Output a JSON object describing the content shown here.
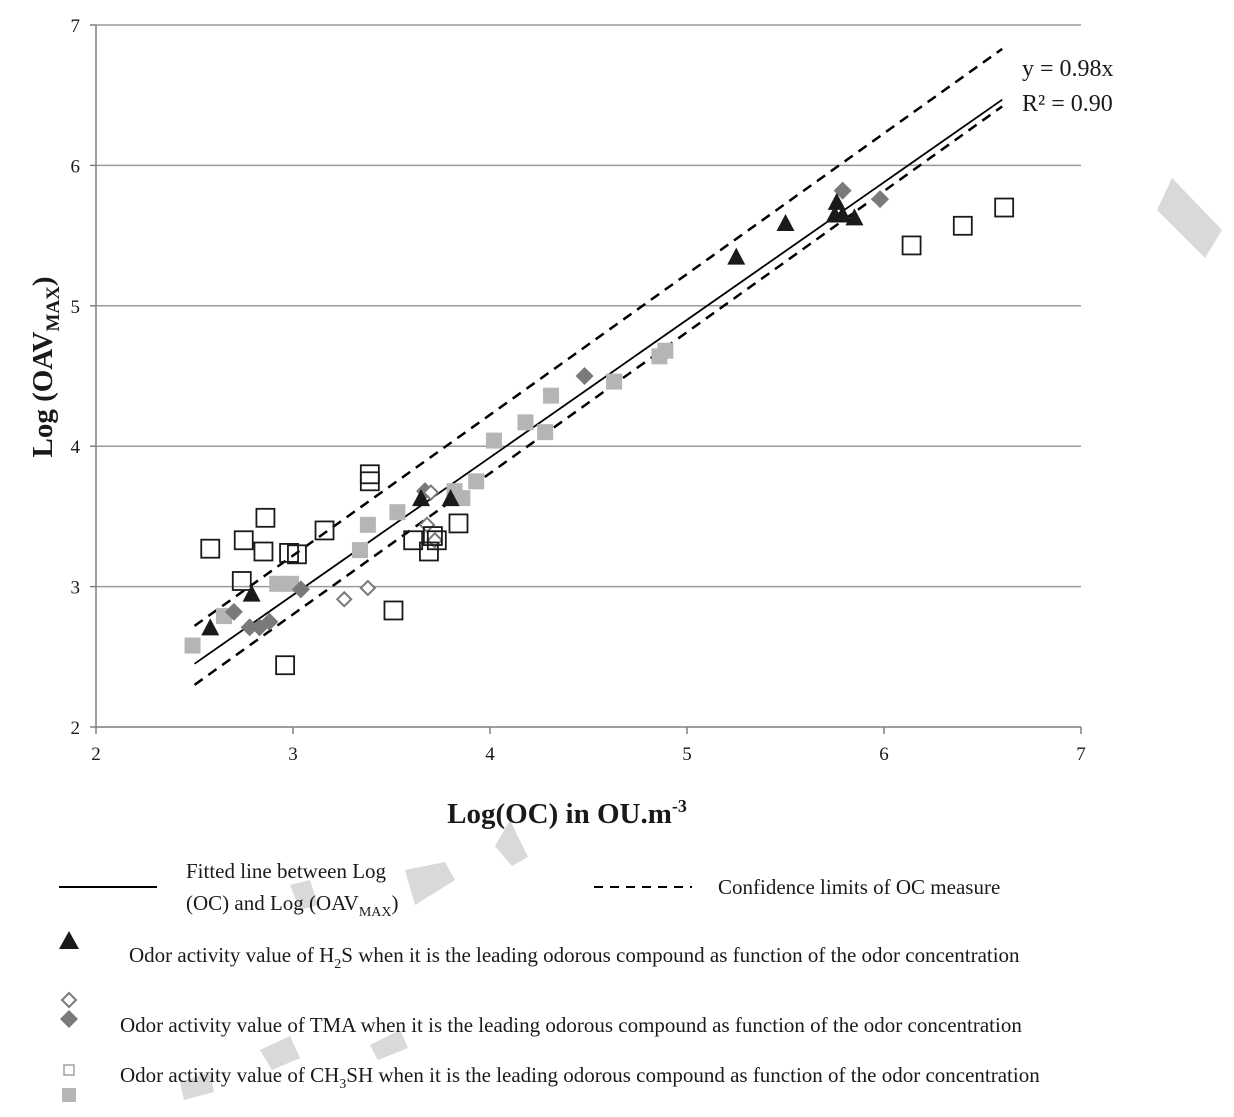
{
  "colors": {
    "gridline": "#9a9a9a",
    "axis": "#7f7f7f",
    "fit_line": "#000000",
    "confidence_line": "#000000",
    "h2s": "#1a1a1a",
    "tma_open": "#7a7a7a",
    "tma_filled": "#7a7a7a",
    "ch3sh_open": "#1a1a1a",
    "ch3sh_filled": "#b5b5b5",
    "watermark": "#d9d9d9"
  },
  "chart_data": {
    "type": "scatter",
    "title": "",
    "xlabel": {
      "main": "Log(OC) in OU.m",
      "sup": "-3"
    },
    "ylabel": {
      "main": "Log (OAV",
      "sub": "MAX",
      "end": ")"
    },
    "xlim": [
      2,
      7
    ],
    "ylim": [
      2,
      7
    ],
    "xticks": [
      2,
      3,
      4,
      5,
      6,
      7
    ],
    "yticks": [
      2,
      3,
      4,
      5,
      6,
      7
    ],
    "grid": "horizontal",
    "equation": "y = 0.98x",
    "r_squared": "R² = 0.90",
    "fit_line": {
      "slope": 0.98,
      "x_range": [
        2.5,
        6.6
      ]
    },
    "confidence_upper": [
      [
        2.5,
        2.72
      ],
      [
        6.6,
        6.83
      ]
    ],
    "confidence_lower": [
      [
        2.5,
        2.3
      ],
      [
        6.6,
        6.42
      ]
    ],
    "series": [
      {
        "key": "h2s",
        "marker": "triangle",
        "points": [
          [
            2.58,
            2.71
          ],
          [
            2.79,
            2.95
          ],
          [
            3.65,
            3.63
          ],
          [
            3.8,
            3.63
          ],
          [
            5.25,
            5.35
          ],
          [
            5.5,
            5.59
          ],
          [
            5.75,
            5.65
          ],
          [
            5.76,
            5.74
          ],
          [
            5.79,
            5.65
          ],
          [
            5.85,
            5.63
          ]
        ]
      },
      {
        "key": "tma_open",
        "marker": "diamond-open",
        "points": [
          [
            3.26,
            2.91
          ],
          [
            3.38,
            2.99
          ],
          [
            3.68,
            3.44
          ],
          [
            3.7,
            3.67
          ],
          [
            3.72,
            3.33
          ]
        ]
      },
      {
        "key": "tma_filled",
        "marker": "diamond-filled",
        "points": [
          [
            2.7,
            2.82
          ],
          [
            2.78,
            2.71
          ],
          [
            2.83,
            2.71
          ],
          [
            2.88,
            2.75
          ],
          [
            3.04,
            2.98
          ],
          [
            3.67,
            3.68
          ],
          [
            4.48,
            4.5
          ],
          [
            5.79,
            5.82
          ],
          [
            5.98,
            5.76
          ]
        ]
      },
      {
        "key": "ch3sh_filled",
        "marker": "square-filled",
        "points": [
          [
            2.49,
            2.58
          ],
          [
            2.65,
            2.79
          ],
          [
            2.92,
            3.02
          ],
          [
            2.99,
            3.02
          ],
          [
            3.34,
            3.26
          ],
          [
            3.38,
            3.44
          ],
          [
            3.53,
            3.53
          ],
          [
            3.82,
            3.68
          ],
          [
            3.86,
            3.63
          ],
          [
            3.93,
            3.75
          ],
          [
            4.02,
            4.04
          ],
          [
            4.18,
            4.17
          ],
          [
            4.28,
            4.1
          ],
          [
            4.31,
            4.36
          ],
          [
            4.63,
            4.46
          ],
          [
            4.86,
            4.64
          ],
          [
            4.89,
            4.68
          ]
        ]
      },
      {
        "key": "ch3sh_open",
        "marker": "square-open",
        "points": [
          [
            2.58,
            3.27
          ],
          [
            2.74,
            3.04
          ],
          [
            2.75,
            3.33
          ],
          [
            2.85,
            3.25
          ],
          [
            2.86,
            3.49
          ],
          [
            2.96,
            2.44
          ],
          [
            2.98,
            3.24
          ],
          [
            3.02,
            3.23
          ],
          [
            3.16,
            3.4
          ],
          [
            3.39,
            3.8
          ],
          [
            3.39,
            3.75
          ],
          [
            3.51,
            2.83
          ],
          [
            3.61,
            3.33
          ],
          [
            3.69,
            3.25
          ],
          [
            3.71,
            3.36
          ],
          [
            3.73,
            3.33
          ],
          [
            3.84,
            3.45
          ],
          [
            6.14,
            5.43
          ],
          [
            6.4,
            5.57
          ],
          [
            6.61,
            5.7
          ]
        ]
      }
    ]
  },
  "legend": {
    "fit_line_label": [
      "Fitted line between Log",
      "(OC) and Log (OAV",
      "MAX",
      ")"
    ],
    "confidence_label": "Confidence limits of OC measure",
    "h2s_label": [
      "Odor activity value of H",
      "2",
      "S when it is the leading odorous compound as function of the odor concentration"
    ],
    "tma_label": "Odor activity value of TMA when it is the leading odorous compound as function of the odor concentration",
    "ch3sh_label": [
      "Odor activity value of CH",
      "3",
      "SH when it is the leading odorous compound as function of the odor concentration"
    ]
  }
}
